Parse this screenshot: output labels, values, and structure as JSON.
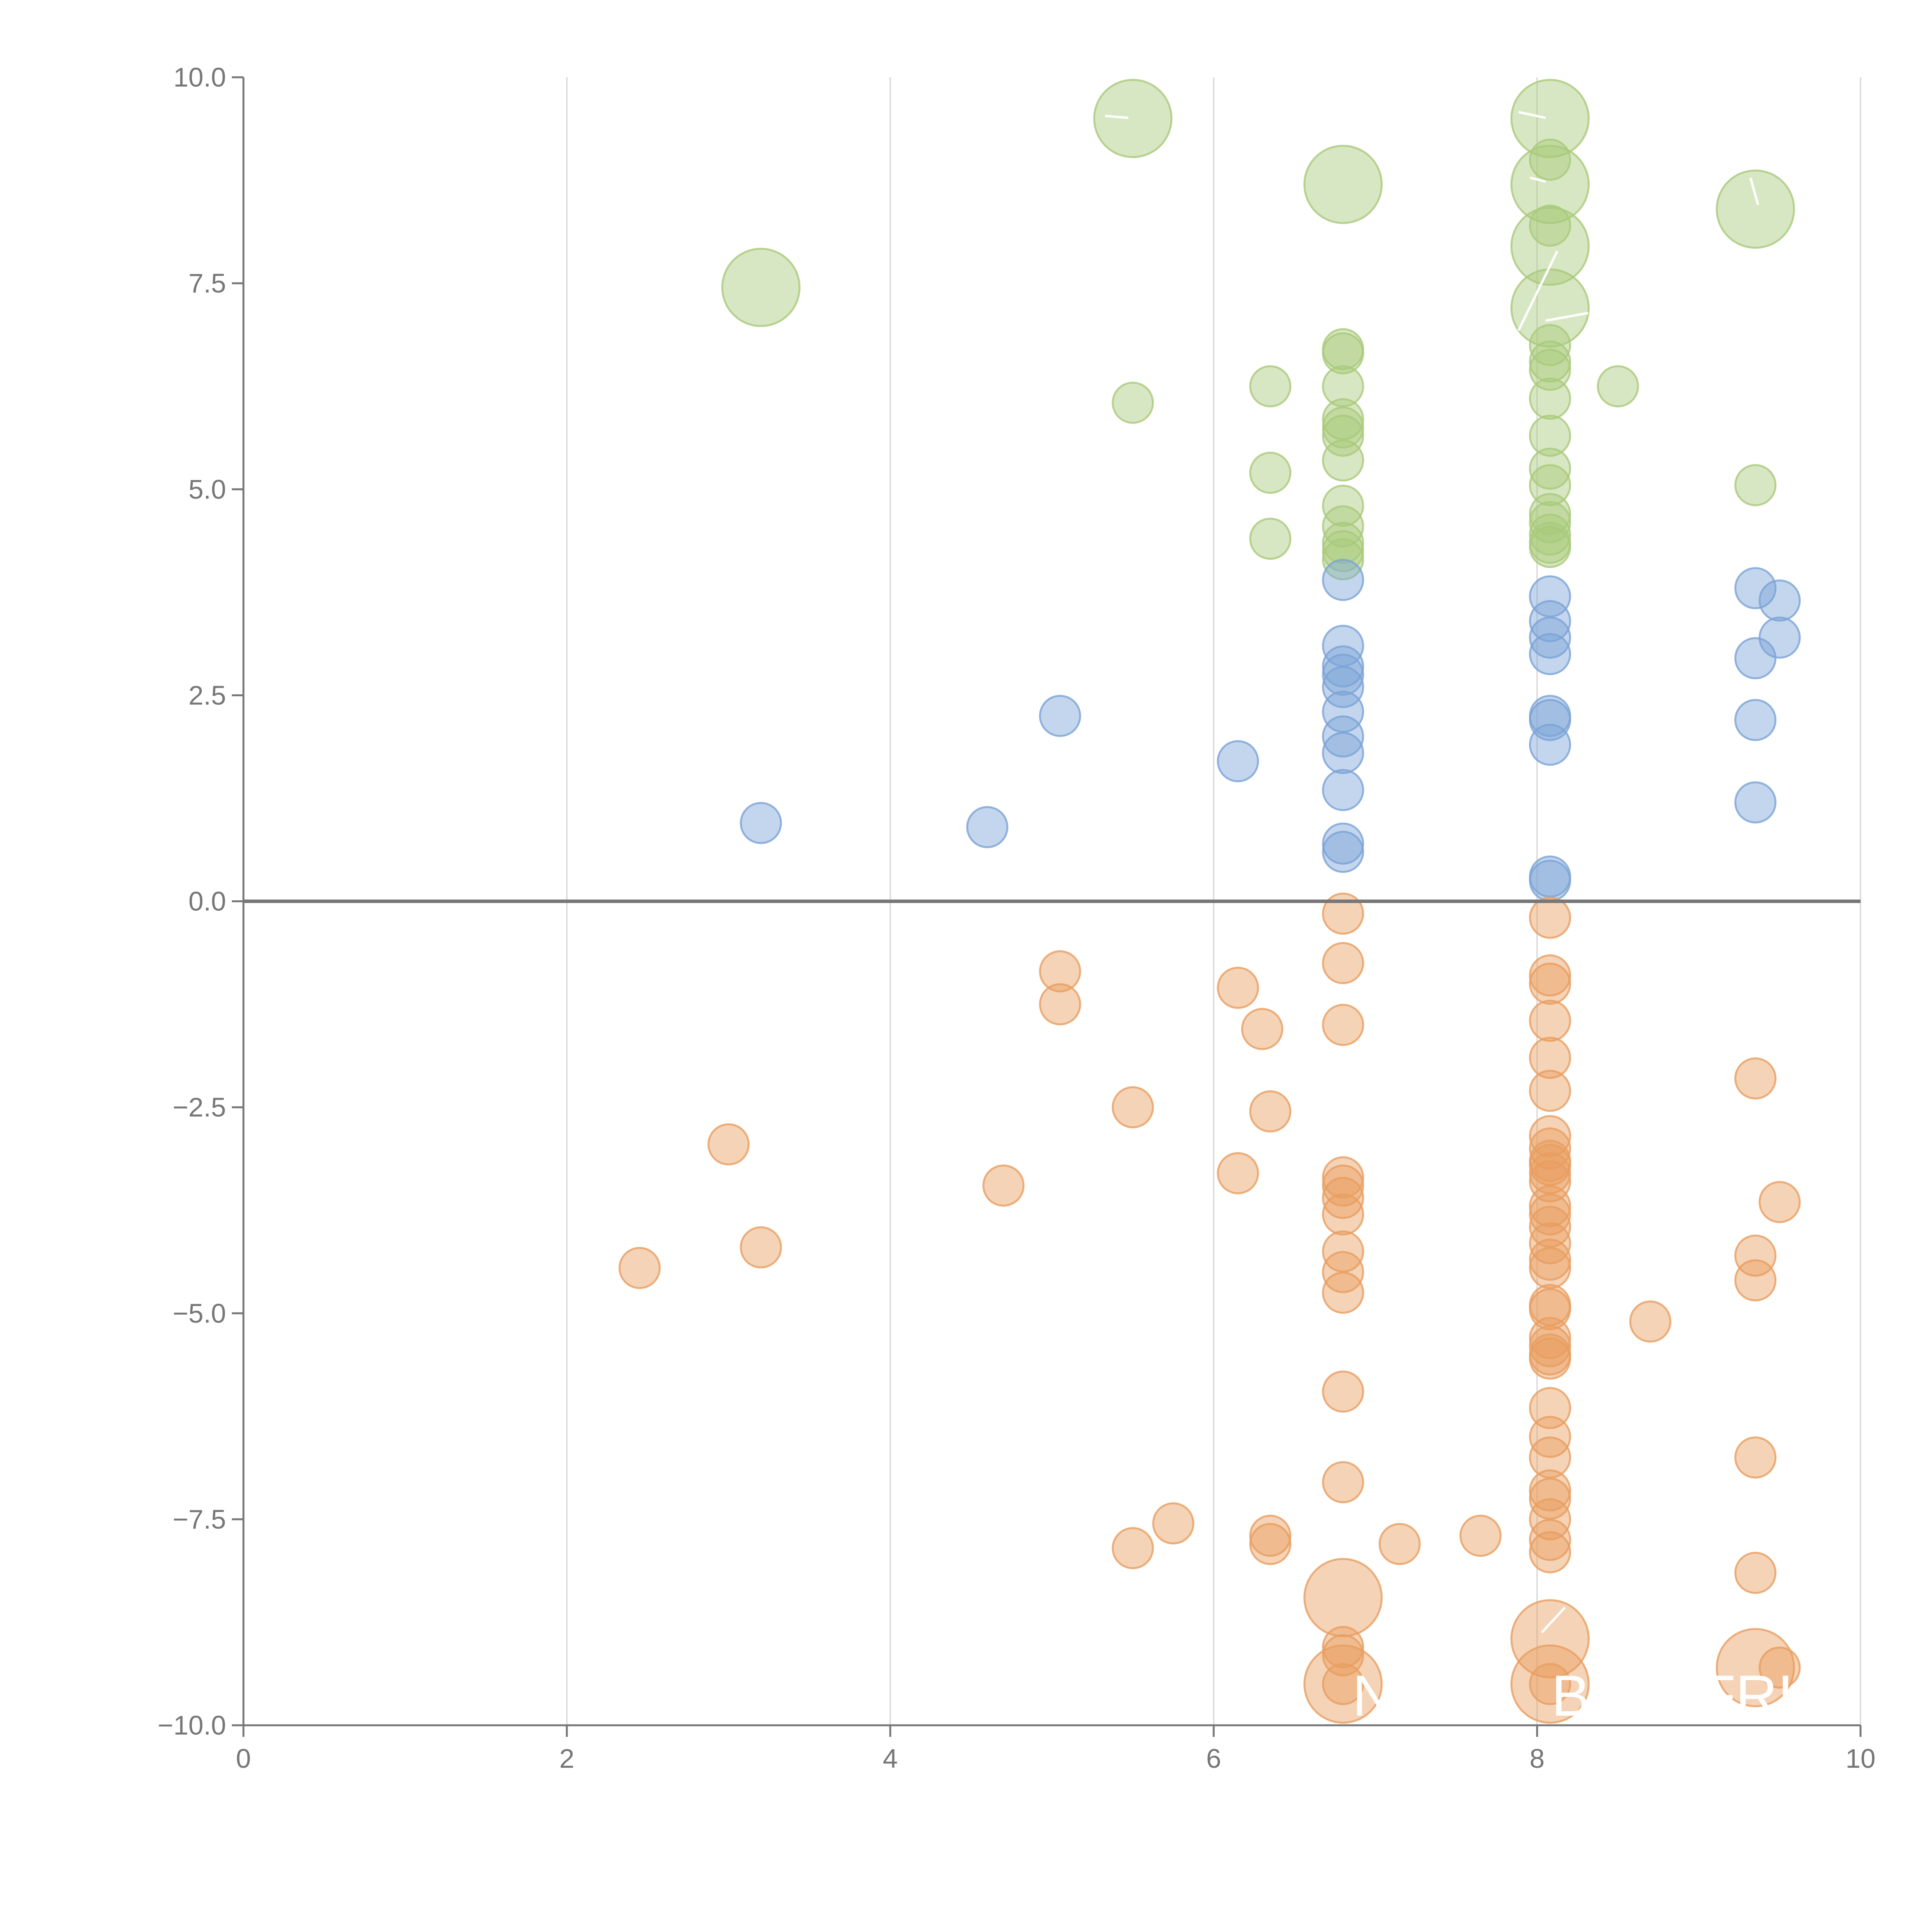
{
  "colors": {
    "blue": "#7ba3d6",
    "green": "#a9c97a",
    "orange": "#e89d5f",
    "axis": "#777777",
    "grid": "#dddddd"
  },
  "chart_data": {
    "type": "scatter",
    "title": "",
    "xlabel": "",
    "ylabel": "",
    "xlim": [
      0,
      10
    ],
    "ylim": [
      -10,
      10
    ],
    "grid": "vertical",
    "x_ticks": [
      "0",
      "2",
      "4",
      "6",
      "8",
      "10"
    ],
    "y_ticks": [
      "10.0",
      "7.5",
      "5.0",
      "2.5",
      "0.0",
      "−2.5",
      "−5.0",
      "−7.5",
      "−10.0"
    ],
    "x_tick_values": [
      0,
      2,
      4,
      6,
      8,
      10
    ],
    "y_tick_values": [
      10,
      7.5,
      5,
      2.5,
      0,
      -2.5,
      -5,
      -7.5,
      -10
    ],
    "annotations": [
      "N",
      "B",
      "FRI"
    ],
    "series": [
      {
        "name": "green",
        "color": "#a9c97a",
        "points": [
          [
            5.5,
            9.5,
            3
          ],
          [
            8.08,
            9.5,
            3
          ],
          [
            8.08,
            9.0,
            1
          ],
          [
            6.8,
            8.7,
            3
          ],
          [
            8.08,
            8.7,
            3
          ],
          [
            9.35,
            8.4,
            3
          ],
          [
            8.08,
            8.2,
            1
          ],
          [
            8.08,
            7.95,
            3
          ],
          [
            3.2,
            7.45,
            3
          ],
          [
            8.08,
            7.2,
            3
          ],
          [
            6.8,
            6.7,
            1
          ],
          [
            6.8,
            6.65,
            1
          ],
          [
            8.08,
            6.75,
            1
          ],
          [
            8.08,
            6.55,
            1
          ],
          [
            8.08,
            6.45,
            1
          ],
          [
            8.5,
            6.25,
            1
          ],
          [
            6.35,
            6.25,
            1
          ],
          [
            6.8,
            6.25,
            1
          ],
          [
            5.5,
            6.05,
            1
          ],
          [
            8.08,
            6.1,
            1
          ],
          [
            6.8,
            5.85,
            1
          ],
          [
            6.8,
            5.75,
            1
          ],
          [
            6.8,
            5.65,
            1
          ],
          [
            8.08,
            5.65,
            1
          ],
          [
            6.8,
            5.35,
            1
          ],
          [
            8.08,
            5.25,
            1
          ],
          [
            6.35,
            5.2,
            1
          ],
          [
            8.08,
            5.05,
            1
          ],
          [
            9.35,
            5.05,
            1
          ],
          [
            6.8,
            4.8,
            1
          ],
          [
            8.08,
            4.7,
            1
          ],
          [
            8.08,
            4.6,
            1
          ],
          [
            6.8,
            4.55,
            1
          ],
          [
            8.08,
            4.45,
            1
          ],
          [
            6.35,
            4.4,
            1
          ],
          [
            6.8,
            4.35,
            1
          ],
          [
            8.08,
            4.35,
            1
          ],
          [
            8.08,
            4.3,
            1
          ],
          [
            6.8,
            4.25,
            1
          ],
          [
            6.8,
            4.15,
            1
          ]
        ]
      },
      {
        "name": "blue",
        "color": "#7ba3d6",
        "points": [
          [
            6.8,
            3.9,
            1
          ],
          [
            9.35,
            3.8,
            1
          ],
          [
            8.08,
            3.7,
            1
          ],
          [
            9.5,
            3.65,
            1
          ],
          [
            8.08,
            3.4,
            1
          ],
          [
            8.08,
            3.2,
            1
          ],
          [
            9.5,
            3.2,
            1
          ],
          [
            6.8,
            3.1,
            1
          ],
          [
            8.08,
            3.0,
            1
          ],
          [
            9.35,
            2.95,
            1
          ],
          [
            6.8,
            2.85,
            1
          ],
          [
            6.8,
            2.75,
            1
          ],
          [
            6.8,
            2.6,
            1
          ],
          [
            6.8,
            2.3,
            1
          ],
          [
            5.05,
            2.25,
            1
          ],
          [
            8.08,
            2.25,
            1
          ],
          [
            8.08,
            2.2,
            1
          ],
          [
            9.35,
            2.2,
            1
          ],
          [
            6.8,
            2.0,
            1
          ],
          [
            8.08,
            1.9,
            1
          ],
          [
            6.8,
            1.8,
            1
          ],
          [
            6.15,
            1.7,
            1
          ],
          [
            6.8,
            1.35,
            1
          ],
          [
            9.35,
            1.2,
            1
          ],
          [
            3.2,
            0.95,
            1
          ],
          [
            4.6,
            0.9,
            1
          ],
          [
            6.8,
            0.7,
            1
          ],
          [
            6.8,
            0.6,
            1
          ],
          [
            8.08,
            0.3,
            1
          ],
          [
            8.08,
            0.25,
            1
          ]
        ]
      },
      {
        "name": "orange",
        "color": "#e89d5f",
        "points": [
          [
            6.8,
            -0.15,
            1
          ],
          [
            8.08,
            -0.2,
            1
          ],
          [
            6.8,
            -0.75,
            1
          ],
          [
            5.05,
            -0.85,
            1
          ],
          [
            8.08,
            -0.9,
            1
          ],
          [
            8.08,
            -1.0,
            1
          ],
          [
            6.15,
            -1.05,
            1
          ],
          [
            5.05,
            -1.25,
            1
          ],
          [
            8.08,
            -1.45,
            1
          ],
          [
            6.8,
            -1.5,
            1
          ],
          [
            6.3,
            -1.55,
            1
          ],
          [
            8.08,
            -1.9,
            1
          ],
          [
            9.35,
            -2.15,
            1
          ],
          [
            8.08,
            -2.3,
            1
          ],
          [
            5.5,
            -2.5,
            1
          ],
          [
            6.35,
            -2.55,
            1
          ],
          [
            8.08,
            -2.85,
            1
          ],
          [
            3.0,
            -2.95,
            1
          ],
          [
            8.08,
            -3.0,
            1
          ],
          [
            8.08,
            -3.15,
            1
          ],
          [
            8.08,
            -3.2,
            1
          ],
          [
            8.08,
            -3.3,
            1
          ],
          [
            6.15,
            -3.3,
            1
          ],
          [
            6.8,
            -3.35,
            1
          ],
          [
            8.08,
            -3.4,
            1
          ],
          [
            4.7,
            -3.45,
            1
          ],
          [
            6.8,
            -3.45,
            1
          ],
          [
            6.8,
            -3.6,
            1
          ],
          [
            8.08,
            -3.7,
            1
          ],
          [
            9.5,
            -3.65,
            1
          ],
          [
            6.8,
            -3.8,
            1
          ],
          [
            8.08,
            -3.8,
            1
          ],
          [
            8.08,
            -3.95,
            1
          ],
          [
            8.08,
            -4.15,
            1
          ],
          [
            3.2,
            -4.2,
            1
          ],
          [
            6.8,
            -4.25,
            1
          ],
          [
            9.35,
            -4.3,
            1
          ],
          [
            8.08,
            -4.35,
            1
          ],
          [
            2.45,
            -4.45,
            1
          ],
          [
            8.08,
            -4.45,
            1
          ],
          [
            6.8,
            -4.5,
            1
          ],
          [
            9.35,
            -4.6,
            1
          ],
          [
            6.8,
            -4.75,
            1
          ],
          [
            8.08,
            -4.9,
            1
          ],
          [
            8.08,
            -4.95,
            1
          ],
          [
            8.7,
            -5.1,
            1
          ],
          [
            8.08,
            -5.3,
            1
          ],
          [
            8.08,
            -5.4,
            1
          ],
          [
            8.08,
            -5.5,
            1
          ],
          [
            8.08,
            -5.55,
            1
          ],
          [
            6.8,
            -5.95,
            1
          ],
          [
            8.08,
            -6.15,
            1
          ],
          [
            8.08,
            -6.5,
            1
          ],
          [
            8.08,
            -6.75,
            1
          ],
          [
            9.35,
            -6.75,
            1
          ],
          [
            6.8,
            -7.05,
            1
          ],
          [
            8.08,
            -7.15,
            1
          ],
          [
            8.08,
            -7.25,
            1
          ],
          [
            8.08,
            -7.5,
            1
          ],
          [
            5.75,
            -7.55,
            1
          ],
          [
            7.65,
            -7.7,
            1
          ],
          [
            6.35,
            -7.7,
            1
          ],
          [
            8.08,
            -7.75,
            1
          ],
          [
            6.35,
            -7.8,
            1
          ],
          [
            7.15,
            -7.8,
            1
          ],
          [
            5.5,
            -7.85,
            1
          ],
          [
            8.08,
            -7.9,
            1
          ],
          [
            9.35,
            -8.15,
            1
          ],
          [
            6.8,
            -8.45,
            3
          ],
          [
            8.08,
            -8.95,
            3
          ],
          [
            6.8,
            -9.05,
            1
          ],
          [
            6.8,
            -9.15,
            1
          ],
          [
            9.35,
            -9.3,
            3
          ],
          [
            9.5,
            -9.3,
            1
          ],
          [
            6.8,
            -9.5,
            3
          ],
          [
            8.08,
            -9.5,
            3
          ],
          [
            6.8,
            -9.5,
            1
          ],
          [
            8.08,
            -9.5,
            1
          ]
        ]
      }
    ]
  }
}
